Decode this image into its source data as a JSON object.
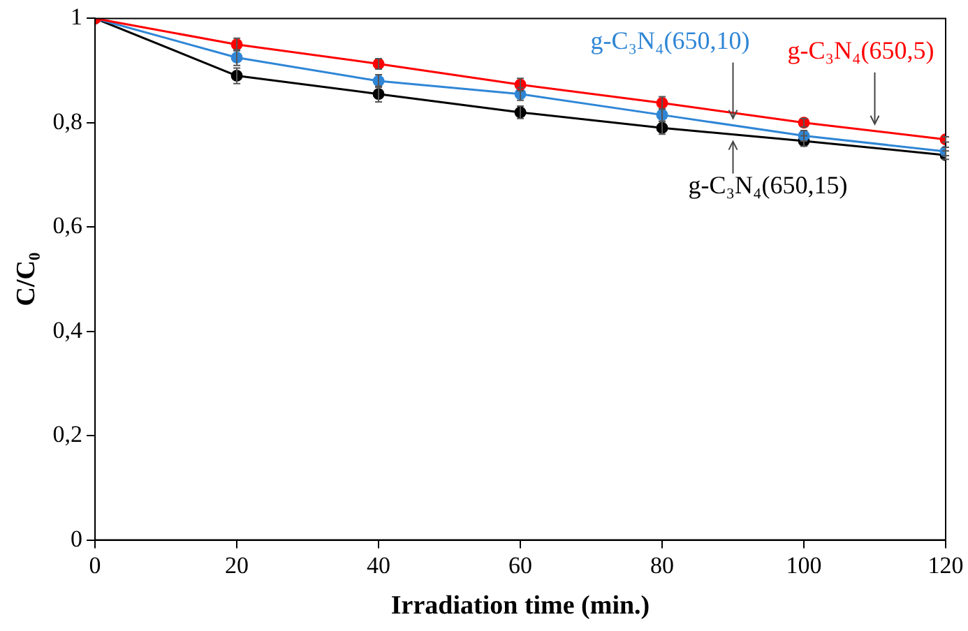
{
  "chart_data": {
    "type": "line",
    "xlabel": "Irradiation time (min.)",
    "ylabel": "C/C₀",
    "x": [
      0,
      20,
      40,
      60,
      80,
      100,
      120
    ],
    "xlim": [
      0,
      120
    ],
    "xticks": [
      0,
      20,
      40,
      60,
      80,
      100,
      120
    ],
    "ylim": [
      0,
      1
    ],
    "yticks": [
      0,
      {
        "value": 0.2,
        "label": "0,2"
      },
      {
        "value": 0.4,
        "label": "0,4"
      },
      {
        "value": 0.6,
        "label": "0,6"
      },
      {
        "value": 0.8,
        "label": "0,8"
      },
      1
    ],
    "grid": false,
    "legend": false,
    "marker": "circle",
    "line_style": "solid",
    "series": [
      {
        "name": "g-C₃N₄(650,5)",
        "color": "#ff0000",
        "values": [
          1,
          0.95,
          0.913,
          0.873,
          0.838,
          0.8,
          0.768
        ],
        "errors": [
          null,
          0.012,
          0.01,
          0.012,
          0.012,
          0.008,
          0.005
        ]
      },
      {
        "name": "g-C₃N₄(650,10)",
        "color": "#2f86d6",
        "values": [
          1,
          0.925,
          0.88,
          0.855,
          0.815,
          0.775,
          0.745
        ],
        "errors": [
          null,
          0.015,
          0.012,
          0.012,
          0.012,
          0.01,
          0.008
        ]
      },
      {
        "name": "g-C₃N₄(650,15)",
        "color": "#000000",
        "values": [
          1,
          0.89,
          0.855,
          0.82,
          0.79,
          0.765,
          0.738
        ],
        "errors": [
          null,
          0.015,
          0.015,
          0.012,
          0.012,
          0.01,
          0.008
        ]
      }
    ]
  }
}
